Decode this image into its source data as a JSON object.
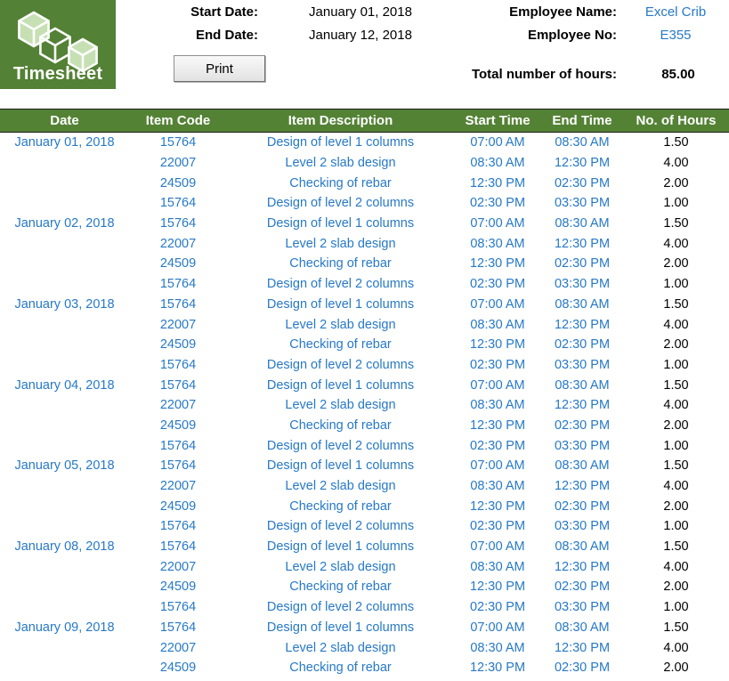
{
  "colors": {
    "green": "#548235",
    "logo-green": "#538135",
    "blue": "#2779C7",
    "cube": "#C6E0B4",
    "hours": "#000000"
  },
  "header": {
    "logo_title": "Timesheet",
    "start_date_label": "Start Date:",
    "start_date_value": "January 01, 2018",
    "end_date_label": "End Date:",
    "end_date_value": "January 12, 2018",
    "print_label": "Print",
    "employee_name_label": "Employee Name:",
    "employee_name_value": "Excel Crib",
    "employee_no_label": "Employee No:",
    "employee_no_value": "E355",
    "total_hours_label": "Total number of hours:",
    "total_hours_value": "85.00"
  },
  "table": {
    "columns": [
      "Date",
      "Item Code",
      "Item Description",
      "Start Time",
      "End Time",
      "No. of Hours"
    ],
    "rows": [
      [
        "January 01, 2018",
        "15764",
        "Design of level 1 columns",
        "07:00 AM",
        "08:30 AM",
        "1.50"
      ],
      [
        "",
        "22007",
        "Level 2 slab design",
        "08:30 AM",
        "12:30 PM",
        "4.00"
      ],
      [
        "",
        "24509",
        "Checking of rebar",
        "12:30 PM",
        "02:30 PM",
        "2.00"
      ],
      [
        "",
        "15764",
        "Design of level 2 columns",
        "02:30 PM",
        "03:30 PM",
        "1.00"
      ],
      [
        "January 02, 2018",
        "15764",
        "Design of level 1 columns",
        "07:00 AM",
        "08:30 AM",
        "1.50"
      ],
      [
        "",
        "22007",
        "Level 2 slab design",
        "08:30 AM",
        "12:30 PM",
        "4.00"
      ],
      [
        "",
        "24509",
        "Checking of rebar",
        "12:30 PM",
        "02:30 PM",
        "2.00"
      ],
      [
        "",
        "15764",
        "Design of level 2 columns",
        "02:30 PM",
        "03:30 PM",
        "1.00"
      ],
      [
        "January 03, 2018",
        "15764",
        "Design of level 1 columns",
        "07:00 AM",
        "08:30 AM",
        "1.50"
      ],
      [
        "",
        "22007",
        "Level 2 slab design",
        "08:30 AM",
        "12:30 PM",
        "4.00"
      ],
      [
        "",
        "24509",
        "Checking of rebar",
        "12:30 PM",
        "02:30 PM",
        "2.00"
      ],
      [
        "",
        "15764",
        "Design of level 2 columns",
        "02:30 PM",
        "03:30 PM",
        "1.00"
      ],
      [
        "January 04, 2018",
        "15764",
        "Design of level 1 columns",
        "07:00 AM",
        "08:30 AM",
        "1.50"
      ],
      [
        "",
        "22007",
        "Level 2 slab design",
        "08:30 AM",
        "12:30 PM",
        "4.00"
      ],
      [
        "",
        "24509",
        "Checking of rebar",
        "12:30 PM",
        "02:30 PM",
        "2.00"
      ],
      [
        "",
        "15764",
        "Design of level 2 columns",
        "02:30 PM",
        "03:30 PM",
        "1.00"
      ],
      [
        "January 05, 2018",
        "15764",
        "Design of level 1 columns",
        "07:00 AM",
        "08:30 AM",
        "1.50"
      ],
      [
        "",
        "22007",
        "Level 2 slab design",
        "08:30 AM",
        "12:30 PM",
        "4.00"
      ],
      [
        "",
        "24509",
        "Checking of rebar",
        "12:30 PM",
        "02:30 PM",
        "2.00"
      ],
      [
        "",
        "15764",
        "Design of level 2 columns",
        "02:30 PM",
        "03:30 PM",
        "1.00"
      ],
      [
        "January 08, 2018",
        "15764",
        "Design of level 1 columns",
        "07:00 AM",
        "08:30 AM",
        "1.50"
      ],
      [
        "",
        "22007",
        "Level 2 slab design",
        "08:30 AM",
        "12:30 PM",
        "4.00"
      ],
      [
        "",
        "24509",
        "Checking of rebar",
        "12:30 PM",
        "02:30 PM",
        "2.00"
      ],
      [
        "",
        "15764",
        "Design of level 2 columns",
        "02:30 PM",
        "03:30 PM",
        "1.00"
      ],
      [
        "January 09, 2018",
        "15764",
        "Design of level 1 columns",
        "07:00 AM",
        "08:30 AM",
        "1.50"
      ],
      [
        "",
        "22007",
        "Level 2 slab design",
        "08:30 AM",
        "12:30 PM",
        "4.00"
      ],
      [
        "",
        "24509",
        "Checking of rebar",
        "12:30 PM",
        "02:30 PM",
        "2.00"
      ]
    ]
  }
}
